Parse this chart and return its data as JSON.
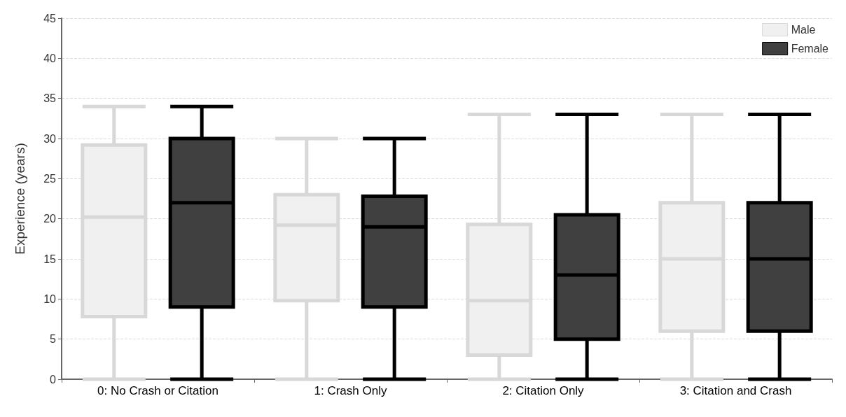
{
  "chart_data": {
    "type": "box",
    "ylabel": "Experience (years)",
    "categories": [
      "0: No Crash or Citation",
      "1: Crash Only",
      "2: Citation Only",
      "3: Citation and Crash"
    ],
    "series": [
      {
        "name": "Male",
        "color": "#f0f0f0",
        "boxes": [
          {
            "low": 0,
            "q1": 7.8,
            "median": 20.2,
            "q3": 29.2,
            "high": 34
          },
          {
            "low": 0,
            "q1": 9.8,
            "median": 19.2,
            "q3": 23,
            "high": 30
          },
          {
            "low": 0,
            "q1": 3,
            "median": 9.8,
            "q3": 19.3,
            "high": 33
          },
          {
            "low": 0,
            "q1": 6,
            "median": 15,
            "q3": 22,
            "high": 33
          }
        ]
      },
      {
        "name": "Female",
        "color": "#404040",
        "boxes": [
          {
            "low": 0,
            "q1": 9,
            "median": 22,
            "q3": 30,
            "high": 34
          },
          {
            "low": 0,
            "q1": 9,
            "median": 19,
            "q3": 22.8,
            "high": 30
          },
          {
            "low": 0,
            "q1": 5,
            "median": 13,
            "q3": 20.5,
            "high": 33
          },
          {
            "low": 0,
            "q1": 6,
            "median": 15,
            "q3": 22,
            "high": 33
          }
        ]
      }
    ],
    "ylim": [
      0,
      45
    ],
    "yticks": [
      0,
      5,
      10,
      15,
      20,
      25,
      30,
      35,
      40,
      45
    ],
    "grid": "y",
    "legend": "top right"
  }
}
